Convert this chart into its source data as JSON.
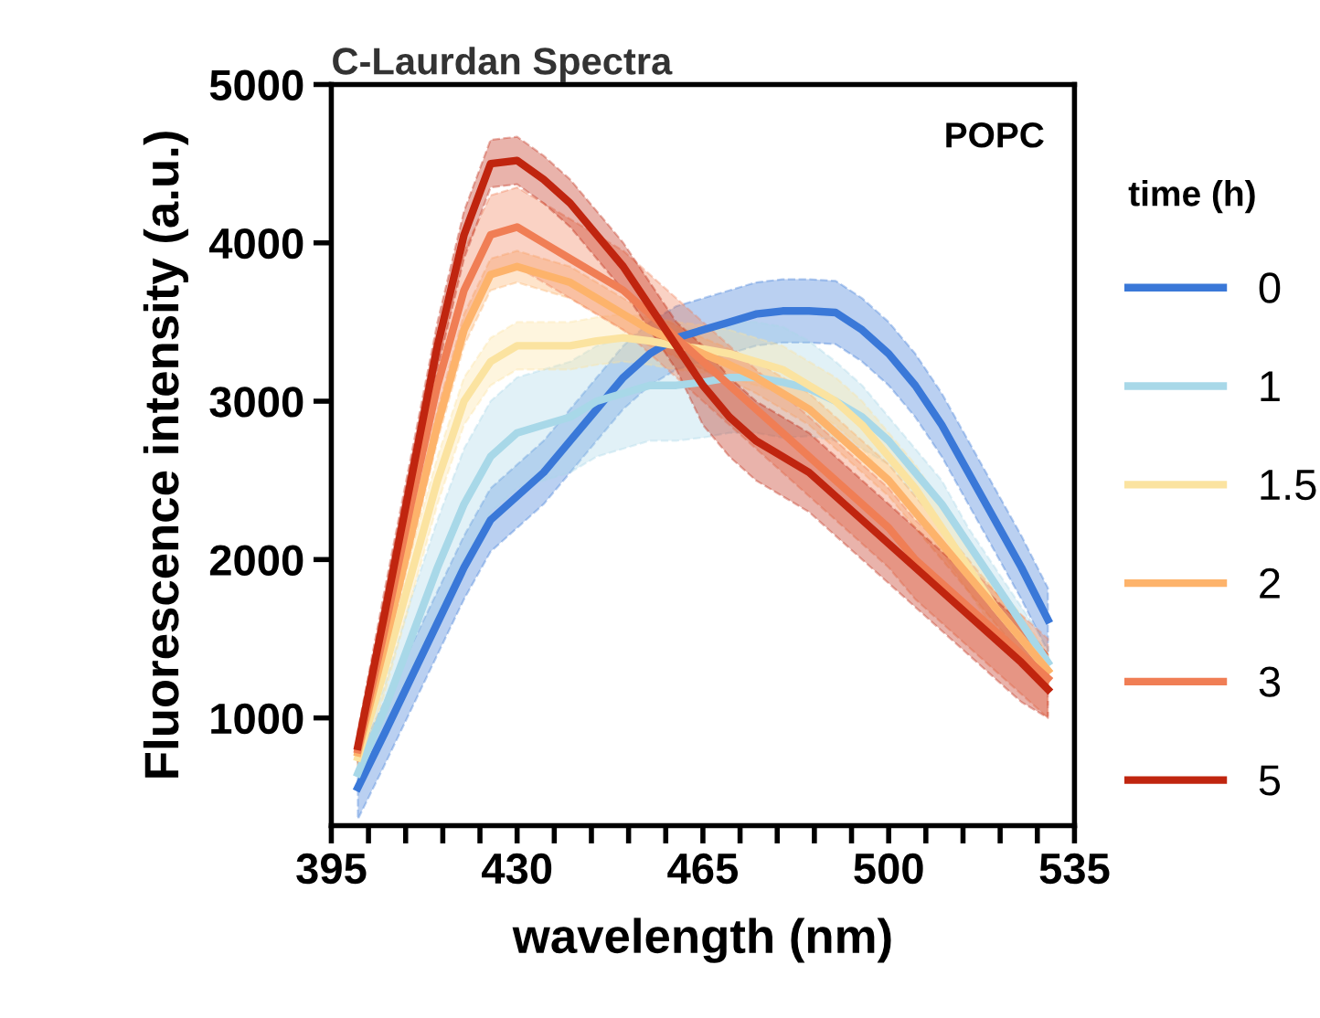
{
  "chart_data": {
    "type": "line",
    "title": "C-Laurdan Spectra",
    "xlabel": "wavelength (nm)",
    "ylabel": "Fluorescence intensity (a.u.)",
    "legend_title": "time (h)",
    "legend": "right",
    "annotations": [
      "POPC"
    ],
    "xlim": [
      395,
      535
    ],
    "ylim": [
      320,
      5000
    ],
    "xticks": [
      395,
      {
        "value": 402,
        "label": null
      },
      {
        "value": 409,
        "label": null
      },
      {
        "value": 416,
        "label": null
      },
      {
        "value": 423,
        "label": null
      },
      430,
      {
        "value": 437,
        "label": null
      },
      {
        "value": 444,
        "label": null
      },
      {
        "value": 451,
        "label": null
      },
      {
        "value": 458,
        "label": null
      },
      465,
      {
        "value": 472,
        "label": null
      },
      {
        "value": 479,
        "label": null
      },
      {
        "value": 486,
        "label": null
      },
      {
        "value": 493,
        "label": null
      },
      500,
      {
        "value": 507,
        "label": null
      },
      {
        "value": 514,
        "label": null
      },
      {
        "value": 521,
        "label": null
      },
      {
        "value": 528,
        "label": null
      },
      535
    ],
    "yticks": [
      1000,
      2000,
      3000,
      4000,
      5000
    ],
    "x": [
      400,
      405,
      410,
      415,
      420,
      425,
      430,
      435,
      440,
      445,
      450,
      455,
      460,
      465,
      470,
      475,
      480,
      485,
      490,
      495,
      500,
      505,
      510,
      515,
      520,
      525,
      530
    ],
    "series": [
      {
        "name": "0",
        "color": "#3a78d8",
        "values": [
          560,
          900,
          1250,
          1600,
          1950,
          2250,
          2400,
          2550,
          2750,
          2950,
          3150,
          3300,
          3400,
          3450,
          3500,
          3550,
          3570,
          3570,
          3560,
          3450,
          3300,
          3100,
          2850,
          2550,
          2250,
          1950,
          1620
        ],
        "lower": [
          360,
          700,
          1050,
          1400,
          1750,
          2050,
          2200,
          2350,
          2550,
          2750,
          2950,
          3100,
          3200,
          3250,
          3300,
          3350,
          3370,
          3370,
          3360,
          3250,
          3100,
          2900,
          2650,
          2350,
          2050,
          1750,
          1420
        ],
        "upper": [
          760,
          1100,
          1450,
          1800,
          2150,
          2450,
          2600,
          2750,
          2950,
          3150,
          3350,
          3500,
          3600,
          3650,
          3700,
          3750,
          3770,
          3770,
          3760,
          3650,
          3500,
          3300,
          3050,
          2750,
          2450,
          2150,
          1820
        ]
      },
      {
        "name": "1",
        "color": "#a8d8e8",
        "values": [
          650,
          1050,
          1500,
          1950,
          2350,
          2650,
          2800,
          2850,
          2900,
          3000,
          3050,
          3100,
          3100,
          3120,
          3150,
          3150,
          3120,
          3080,
          3000,
          2900,
          2750,
          2550,
          2350,
          2100,
          1850,
          1600,
          1350
        ],
        "lower": [
          550,
          900,
          1250,
          1650,
          2000,
          2300,
          2450,
          2500,
          2550,
          2650,
          2700,
          2750,
          2750,
          2770,
          2800,
          2800,
          2770,
          2780,
          2750,
          2700,
          2600,
          2400,
          2200,
          2000,
          1750,
          1500,
          1250
        ],
        "upper": [
          750,
          1200,
          1750,
          2250,
          2700,
          3000,
          3150,
          3200,
          3250,
          3350,
          3400,
          3450,
          3450,
          3470,
          3500,
          3500,
          3470,
          3380,
          3250,
          3100,
          2900,
          2700,
          2500,
          2200,
          1950,
          1700,
          1450
        ]
      },
      {
        "name": "1.5",
        "color": "#fbe3a0",
        "values": [
          750,
          1300,
          1900,
          2500,
          3000,
          3250,
          3350,
          3350,
          3350,
          3380,
          3400,
          3380,
          3350,
          3330,
          3300,
          3250,
          3200,
          3100,
          3000,
          2850,
          2650,
          2450,
          2200,
          1950,
          1700,
          1500,
          1300
        ],
        "lower": [
          650,
          1150,
          1750,
          2350,
          2850,
          3100,
          3200,
          3200,
          3200,
          3230,
          3250,
          3230,
          3200,
          3180,
          3150,
          3100,
          3050,
          2950,
          2850,
          2700,
          2500,
          2300,
          2050,
          1800,
          1550,
          1350,
          1200
        ],
        "upper": [
          850,
          1450,
          2050,
          2650,
          3150,
          3400,
          3500,
          3500,
          3500,
          3530,
          3550,
          3530,
          3500,
          3480,
          3450,
          3400,
          3350,
          3250,
          3150,
          3000,
          2800,
          2600,
          2350,
          2100,
          1850,
          1650,
          1400
        ]
      },
      {
        "name": "2",
        "color": "#fdb36b",
        "values": [
          780,
          1450,
          2150,
          2850,
          3450,
          3800,
          3850,
          3800,
          3750,
          3650,
          3550,
          3450,
          3380,
          3300,
          3230,
          3150,
          3050,
          2950,
          2800,
          2650,
          2500,
          2300,
          2100,
          1900,
          1700,
          1500,
          1300
        ],
        "lower": [
          680,
          1350,
          2050,
          2750,
          3350,
          3700,
          3750,
          3700,
          3650,
          3550,
          3450,
          3350,
          3280,
          3200,
          3130,
          3050,
          2950,
          2850,
          2700,
          2550,
          2400,
          2200,
          2000,
          1800,
          1600,
          1400,
          1200
        ],
        "upper": [
          880,
          1550,
          2250,
          2950,
          3550,
          3900,
          3950,
          3900,
          3850,
          3750,
          3650,
          3550,
          3480,
          3400,
          3330,
          3250,
          3150,
          3050,
          2900,
          2750,
          2600,
          2400,
          2200,
          2000,
          1800,
          1600,
          1400
        ]
      },
      {
        "name": "3",
        "color": "#f07e55",
        "values": [
          800,
          1550,
          2350,
          3100,
          3700,
          4050,
          4100,
          4000,
          3900,
          3800,
          3700,
          3550,
          3400,
          3250,
          3100,
          2950,
          2800,
          2650,
          2500,
          2350,
          2200,
          2000,
          1850,
          1700,
          1550,
          1400,
          1250
        ],
        "lower": [
          700,
          1350,
          2100,
          2850,
          3450,
          3800,
          3850,
          3750,
          3650,
          3550,
          3450,
          3300,
          3150,
          3000,
          2850,
          2700,
          2550,
          2400,
          2250,
          2100,
          1950,
          1750,
          1600,
          1450,
          1300,
          1150,
          1000
        ],
        "upper": [
          900,
          1750,
          2600,
          3350,
          3950,
          4300,
          4350,
          4250,
          4150,
          4050,
          3950,
          3800,
          3650,
          3500,
          3350,
          3200,
          3050,
          2900,
          2750,
          2600,
          2450,
          2250,
          2100,
          1950,
          1800,
          1650,
          1500
        ]
      },
      {
        "name": "5",
        "color": "#c0250f",
        "values": [
          820,
          1650,
          2500,
          3350,
          4050,
          4500,
          4520,
          4400,
          4250,
          4050,
          3850,
          3600,
          3350,
          3100,
          2900,
          2750,
          2650,
          2550,
          2400,
          2250,
          2100,
          1950,
          1800,
          1650,
          1500,
          1350,
          1180
        ],
        "lower": [
          720,
          1500,
          2350,
          3200,
          3900,
          4350,
          4370,
          4250,
          4100,
          3900,
          3700,
          3450,
          3200,
          2850,
          2650,
          2500,
          2400,
          2300,
          2150,
          2000,
          1850,
          1700,
          1550,
          1400,
          1250,
          1100,
          1000
        ],
        "upper": [
          920,
          1800,
          2650,
          3500,
          4200,
          4650,
          4670,
          4550,
          4400,
          4200,
          4000,
          3750,
          3500,
          3350,
          3150,
          3000,
          2900,
          2800,
          2650,
          2500,
          2350,
          2200,
          2050,
          1900,
          1750,
          1600,
          1400
        ]
      }
    ]
  }
}
